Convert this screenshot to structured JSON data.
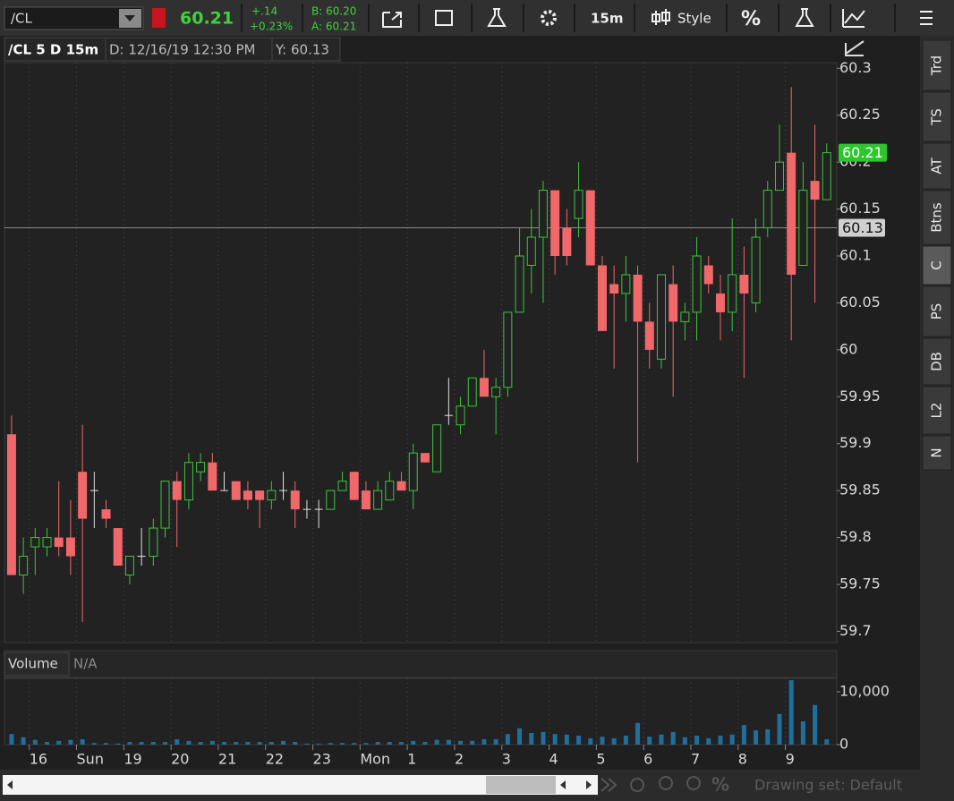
{
  "toolbar": {
    "symbol": "/CL",
    "last": "60.21",
    "change": "+.14",
    "change_pct": "+0.23%",
    "bid": "B: 60.20",
    "ask": "A: 60.21",
    "interval": "15m",
    "style": "Style",
    "percent": "%"
  },
  "chart_header": {
    "title": "/CL 5 D 15m",
    "date": "D: 12/16/19 12:30 PM",
    "y": "Y: 60.13"
  },
  "chart_data": [
    {
      "type": "candlestick",
      "up_color": "#3ec43e",
      "down_color": "#f0686a",
      "doji_color": "#e0e0e0",
      "grid": true,
      "open": [
        59.91,
        59.76,
        59.79,
        59.79,
        59.8,
        59.8,
        59.87,
        59.85,
        59.83,
        59.81,
        59.76,
        59.78,
        59.78,
        59.81,
        59.86,
        59.84,
        59.87,
        59.88,
        59.85,
        59.86,
        59.85,
        59.85,
        59.84,
        59.85,
        59.85,
        59.83,
        59.83,
        59.83,
        59.85,
        59.87,
        59.85,
        59.83,
        59.84,
        59.86,
        59.85,
        59.89,
        59.87,
        59.93,
        59.92,
        59.94,
        59.97,
        59.95,
        59.96,
        60.04,
        60.09,
        60.12,
        60.17,
        60.13,
        60.14,
        60.17,
        60.09,
        60.07,
        60.06,
        60.08,
        60.03,
        59.99,
        60.07,
        60.03,
        60.04,
        60.09,
        60.06,
        60.04,
        60.08,
        60.05,
        60.13,
        60.17,
        60.21,
        60.09,
        60.18,
        60.16
      ],
      "high": [
        59.93,
        59.8,
        59.81,
        59.81,
        59.86,
        59.84,
        59.92,
        59.87,
        59.84,
        59.81,
        59.78,
        59.81,
        59.82,
        59.86,
        59.87,
        59.89,
        59.89,
        59.89,
        59.87,
        59.86,
        59.86,
        59.85,
        59.86,
        59.87,
        59.86,
        59.84,
        59.84,
        59.85,
        59.87,
        59.87,
        59.86,
        59.86,
        59.87,
        59.87,
        59.9,
        59.89,
        59.92,
        59.97,
        59.95,
        59.97,
        60.0,
        59.97,
        60.04,
        60.13,
        60.15,
        60.18,
        60.17,
        60.15,
        60.2,
        60.17,
        60.1,
        60.09,
        60.1,
        60.09,
        60.05,
        60.08,
        60.09,
        60.05,
        60.12,
        60.1,
        60.08,
        60.14,
        60.11,
        60.14,
        60.18,
        60.24,
        60.28,
        60.2,
        60.24,
        60.22
      ],
      "low": [
        59.76,
        59.74,
        59.76,
        59.78,
        59.78,
        59.76,
        59.71,
        59.81,
        59.81,
        59.77,
        59.75,
        59.77,
        59.77,
        59.8,
        59.79,
        59.83,
        59.86,
        59.85,
        59.85,
        59.84,
        59.83,
        59.81,
        59.83,
        59.84,
        59.81,
        59.82,
        59.81,
        59.83,
        59.85,
        59.84,
        59.83,
        59.83,
        59.84,
        59.85,
        59.83,
        59.88,
        59.87,
        59.92,
        59.91,
        59.94,
        59.95,
        59.91,
        59.95,
        60.04,
        60.06,
        60.05,
        60.08,
        60.09,
        60.12,
        60.09,
        60.02,
        59.98,
        60.03,
        59.88,
        59.98,
        59.98,
        59.95,
        60.01,
        60.01,
        60.06,
        60.01,
        60.02,
        59.97,
        60.04,
        60.12,
        60.17,
        60.01,
        60.09,
        60.05,
        60.16
      ],
      "close": [
        59.76,
        59.78,
        59.8,
        59.8,
        59.79,
        59.78,
        59.82,
        59.85,
        59.82,
        59.77,
        59.78,
        59.78,
        59.81,
        59.86,
        59.84,
        59.88,
        59.88,
        59.85,
        59.85,
        59.84,
        59.84,
        59.84,
        59.85,
        59.85,
        59.83,
        59.83,
        59.83,
        59.85,
        59.86,
        59.84,
        59.83,
        59.85,
        59.86,
        59.85,
        59.89,
        59.88,
        59.92,
        59.93,
        59.94,
        59.97,
        59.95,
        59.96,
        60.04,
        60.1,
        60.12,
        60.17,
        60.1,
        60.1,
        60.17,
        60.09,
        60.02,
        60.06,
        60.08,
        60.03,
        60.0,
        60.08,
        60.03,
        60.04,
        60.1,
        60.07,
        60.04,
        60.08,
        60.06,
        60.12,
        60.17,
        60.2,
        60.08,
        60.17,
        60.16,
        60.21
      ],
      "ylim": [
        59.688,
        60.306
      ],
      "yticks": [
        60.3,
        60.25,
        60.2,
        60.15,
        60.1,
        60.05,
        60,
        59.95,
        59.9,
        59.85,
        59.8,
        59.75,
        59.7
      ],
      "xlim": [
        -0.6,
        69.85
      ],
      "xticks": [
        {
          "value": 1.5,
          "label": "16"
        },
        {
          "value": 5.5,
          "label": "Sun"
        },
        {
          "value": 9.5,
          "label": "19"
        },
        {
          "value": 13.5,
          "label": "20"
        },
        {
          "value": 17.5,
          "label": "21"
        },
        {
          "value": 21.5,
          "label": "22"
        },
        {
          "value": 25.5,
          "label": "23"
        },
        {
          "value": 29.5,
          "label": "Mon"
        },
        {
          "value": 33.5,
          "label": "1"
        },
        {
          "value": 37.5,
          "label": "2"
        },
        {
          "value": 41.5,
          "label": "3"
        },
        {
          "value": 45.5,
          "label": "4"
        },
        {
          "value": 49.5,
          "label": "5"
        },
        {
          "value": 53.5,
          "label": "6"
        },
        {
          "value": 57.5,
          "label": "7"
        },
        {
          "value": 61.5,
          "label": "8"
        },
        {
          "value": 65.5,
          "label": "9"
        }
      ],
      "last_price": 60.21,
      "last_color": "#2fc52f",
      "cursor_price": 60.13
    },
    {
      "type": "bar",
      "title": "Volume",
      "subtitle": "N/A",
      "color": "#1f6f9e",
      "values": [
        2000,
        1400,
        900,
        500,
        700,
        900,
        1000,
        300,
        300,
        200,
        500,
        500,
        500,
        500,
        1000,
        700,
        500,
        700,
        500,
        500,
        500,
        500,
        500,
        700,
        500,
        200,
        200,
        300,
        300,
        300,
        300,
        500,
        500,
        500,
        700,
        500,
        900,
        900,
        700,
        700,
        1000,
        1000,
        2000,
        3100,
        2200,
        2400,
        2000,
        1900,
        1700,
        1200,
        1500,
        1200,
        1700,
        4100,
        1500,
        1900,
        2400,
        1400,
        1700,
        1200,
        1700,
        1900,
        3700,
        2700,
        2900,
        5800,
        12200,
        4400,
        7500,
        1000
      ],
      "ylim": [
        0,
        12540
      ],
      "yticks": [
        0,
        {
          "value": 10000,
          "label": "10,000"
        }
      ]
    }
  ],
  "side_tabs": [
    "Trd",
    "TS",
    "AT",
    "Btns",
    "C",
    "PS",
    "DB",
    "L2",
    "N"
  ],
  "footer": {
    "drawing_set": "Drawing set: Default"
  }
}
